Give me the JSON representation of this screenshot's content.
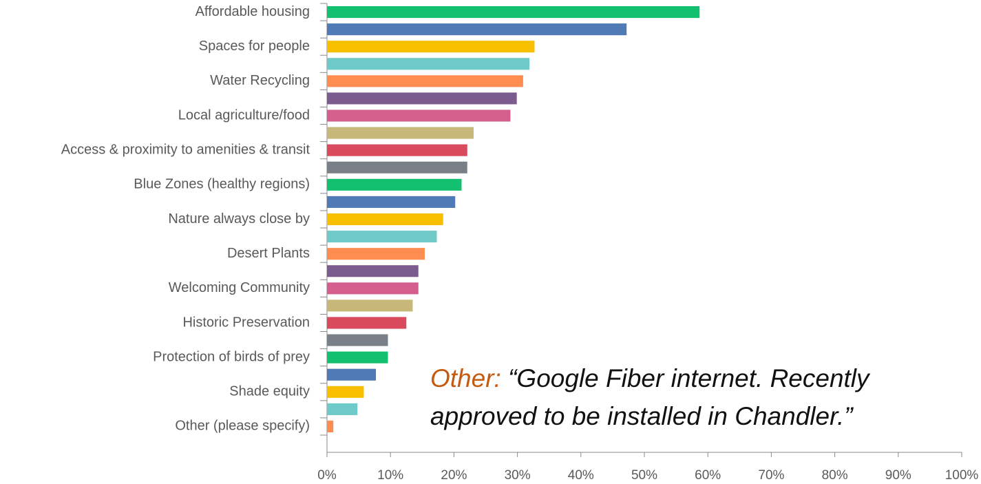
{
  "chart_data": {
    "type": "barh",
    "categories": [
      "Affordable housing",
      null,
      "Spaces for people",
      null,
      "Water Recycling",
      null,
      "Local agriculture/food",
      null,
      "Access & proximity to amenities & transit",
      null,
      "Blue Zones (healthy regions)",
      null,
      "Nature always close by",
      null,
      "Desert Plants",
      null,
      "Welcoming Community",
      null,
      "Historic Preservation",
      null,
      "Protection of birds of prey",
      null,
      "Shade equity",
      null,
      "Other (please specify)"
    ],
    "values": [
      58.7,
      47.2,
      32.7,
      31.9,
      30.9,
      29.9,
      28.9,
      23.1,
      22.1,
      22.1,
      21.2,
      20.2,
      18.3,
      17.3,
      15.4,
      14.4,
      14.4,
      13.5,
      12.5,
      9.6,
      9.6,
      7.7,
      5.8,
      4.8,
      1.0
    ],
    "colors": [
      "#13c06f",
      "#4f7ab6",
      "#f8bf00",
      "#6ec9c9",
      "#fd8d51",
      "#7c5c8e",
      "#d45f8e",
      "#c7b87a",
      "#d94a5c",
      "#7a8088",
      "#13c06f",
      "#4f7ab6",
      "#f8bf00",
      "#6ec9c9",
      "#fd8d51",
      "#7c5c8e",
      "#d45f8e",
      "#c7b87a",
      "#d94a5c",
      "#7a8088",
      "#13c06f",
      "#4f7ab6",
      "#f8bf00",
      "#6ec9c9",
      "#fd8d51"
    ],
    "xlim": [
      0,
      100
    ],
    "xticks": [
      {
        "value": 0,
        "label": "0%"
      },
      {
        "value": 10,
        "label": "10%"
      },
      {
        "value": 20,
        "label": "20%"
      },
      {
        "value": 30,
        "label": "30%"
      },
      {
        "value": 40,
        "label": "40%"
      },
      {
        "value": 50,
        "label": "50%"
      },
      {
        "value": 60,
        "label": "60%"
      },
      {
        "value": 70,
        "label": "70%"
      },
      {
        "value": 80,
        "label": "80%"
      },
      {
        "value": 90,
        "label": "90%"
      },
      {
        "value": 100,
        "label": "100%"
      }
    ],
    "annotation": {
      "prefix": "Other:",
      "color": "#c55a11",
      "lines": [
        "“Google Fiber internet. Recently",
        "approved to be installed in Chandler.”"
      ]
    }
  }
}
